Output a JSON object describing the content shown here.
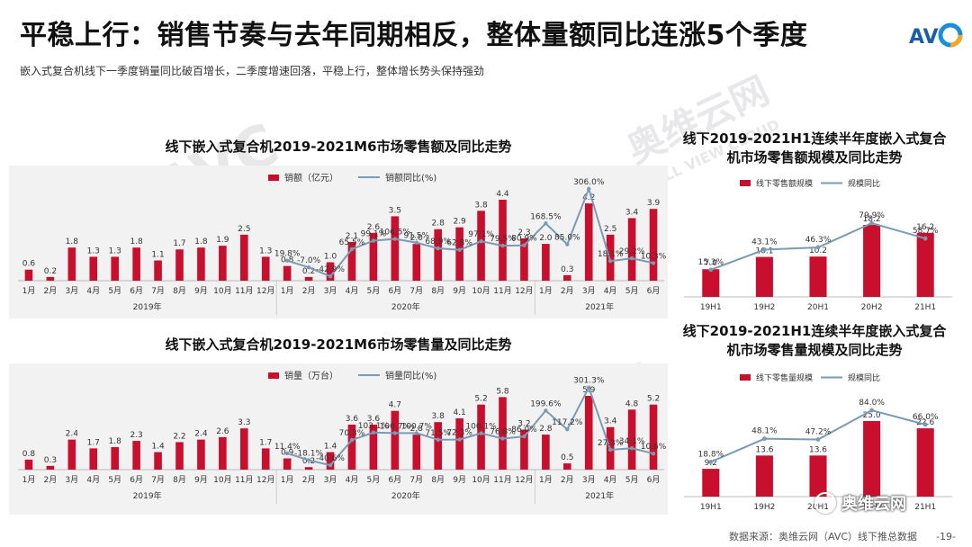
{
  "header": {
    "title": "平稳上行：销售节奏与去年同期相反，整体量额同比连涨5个季度",
    "subtitle": "嵌入式复合机线下一季度销量同比破百增长，二季度增速回落，平稳上行，整体增长势头保持强劲"
  },
  "watermark": {
    "cn": "奥维云网",
    "en": "AVC",
    "en_small": "ALL VIEW CLOUD"
  },
  "footer": {
    "source": "数据来源：奥维云网（AVC）线下推总数据",
    "page": "-19-"
  },
  "wechat": {
    "label": "奥维云网"
  },
  "colors": {
    "bar": "#c8102e",
    "line": "#7a9bb5",
    "panel": "#f2f2f2"
  },
  "chart_data": [
    {
      "type": "bar",
      "title": "线下嵌入式复合机2019-2021M6市场零售额及同比走势",
      "legend": [
        "销额（亿元）",
        "销额同比(%)"
      ],
      "categories": [
        "1月",
        "2月",
        "3月",
        "4月",
        "5月",
        "6月",
        "7月",
        "8月",
        "9月",
        "10月",
        "11月",
        "12月",
        "1月",
        "2月",
        "3月",
        "4月",
        "5月",
        "6月",
        "7月",
        "8月",
        "9月",
        "10月",
        "11月",
        "12月",
        "1月",
        "2月",
        "3月",
        "4月",
        "5月",
        "6月"
      ],
      "groups": [
        "2019年",
        "2020年",
        "2021年"
      ],
      "values": [
        0.6,
        0.2,
        1.8,
        1.3,
        1.3,
        1.8,
        1.1,
        1.7,
        1.8,
        1.9,
        2.5,
        1.3,
        0.8,
        0.2,
        1.0,
        2.1,
        2.6,
        3.5,
        2.0,
        2.8,
        2.9,
        3.8,
        4.4,
        2.3,
        2.0,
        0.3,
        4.2,
        2.5,
        3.4,
        3.9
      ],
      "value_labels": [
        "0.6",
        "0.2",
        "1.8",
        "1.3",
        "1.3",
        "1.8",
        "1.1",
        "1.7",
        "1.8",
        "1.9",
        "2.5",
        "1.3",
        "0.8",
        "0.2",
        "1.0",
        "2.1",
        "2.6",
        "3.5",
        "2.0",
        "2.8",
        "2.9",
        "3.8",
        "4.4",
        "2.3",
        "2.0",
        "0.3",
        "4.2",
        "2.5",
        "3.4",
        "3.9"
      ],
      "yoy": [
        19.8,
        -7.0,
        -42.9,
        65.5,
        99.1,
        106.5,
        91.5,
        68.9,
        62.8,
        97.1,
        79.5,
        80.9,
        168.5,
        85.0,
        306.0,
        18.1,
        29.2,
        10.3
      ],
      "yoy_labels": [
        "19.8%",
        "-7.0%",
        "-42.9%",
        "65.5%",
        "99.1%",
        "106.5%",
        "91.5%",
        "68.9%",
        "62.8%",
        "97.1%",
        "79.5%",
        "80.9%",
        "168.5%",
        "85.0%",
        "306.0%",
        "18.1%",
        "29.2%",
        "10.3%"
      ]
    },
    {
      "type": "bar",
      "title": "线下嵌入式复合机2019-2021M6市场零售量及同比走势",
      "legend": [
        "销量（万台）",
        "销量同比(%)"
      ],
      "categories": [
        "1月",
        "2月",
        "3月",
        "4月",
        "5月",
        "6月",
        "7月",
        "8月",
        "9月",
        "10月",
        "11月",
        "12月",
        "1月",
        "2月",
        "3月",
        "4月",
        "5月",
        "6月",
        "7月",
        "8月",
        "9月",
        "10月",
        "11月",
        "12月",
        "1月",
        "2月",
        "3月",
        "4月",
        "5月",
        "6月"
      ],
      "groups": [
        "2019年",
        "2020年",
        "2021年"
      ],
      "values": [
        0.8,
        0.3,
        2.4,
        1.7,
        1.8,
        2.3,
        1.4,
        2.2,
        2.4,
        2.6,
        3.3,
        1.7,
        0.9,
        0.2,
        1.4,
        3.6,
        3.6,
        4.7,
        2.8,
        3.8,
        4.1,
        5.2,
        5.8,
        3.2,
        2.8,
        0.5,
        5.9,
        3.4,
        4.8,
        5.2
      ],
      "value_labels": [
        "0.8",
        "0.3",
        "2.4",
        "1.7",
        "1.8",
        "2.3",
        "1.4",
        "2.2",
        "2.4",
        "2.6",
        "3.3",
        "1.7",
        "0.9",
        "0.2",
        "1.4",
        "3.6",
        "3.6",
        "4.7",
        "2.8",
        "3.8",
        "4.1",
        "5.2",
        "5.8",
        "3.2",
        "2.8",
        "0.5",
        "5.9",
        "3.4",
        "4.8",
        "5.2"
      ],
      "yoy": [
        11.4,
        -18.1,
        -40.6,
        70.3,
        103.1,
        100.7,
        100.7,
        71.5,
        72.3,
        100.1,
        76.8,
        86.0,
        199.6,
        117.2,
        301.3,
        27.3,
        34.1,
        10.6
      ],
      "yoy_labels": [
        "11.4%",
        "-18.1%",
        "-40.6%",
        "70.3%",
        "103.1%",
        "100.7%",
        "100.7%",
        "71.5%",
        "72.3%",
        "100.1%",
        "76.8%",
        "86.0%",
        "199.6%",
        "117.2%",
        "301.3%",
        "27.3%",
        "34.1%",
        "10.6%"
      ]
    },
    {
      "type": "bar",
      "title": "线下2019-2021H1连续半年度嵌入式复合机市场零售额规模及同比走势",
      "legend": [
        "线下零售额规模",
        "规模同比"
      ],
      "categories": [
        "19H1",
        "19H2",
        "20H1",
        "20H2",
        "21H1"
      ],
      "values": [
        7.0,
        10.1,
        10.2,
        18.2,
        16.2
      ],
      "value_labels": [
        "7.0",
        "10.1",
        "10.2",
        "18.2",
        "16.2"
      ],
      "yoy": [
        15.3,
        43.1,
        46.3,
        79.9,
        58.7
      ],
      "yoy_labels": [
        "15.3%",
        "43.1%",
        "46.3%",
        "79.9%",
        "58.7%"
      ]
    },
    {
      "type": "bar",
      "title": "线下2019-2021H1连续半年度嵌入式复合机市场零售量规模及同比走势",
      "legend": [
        "线下零售量规模",
        "规模同比"
      ],
      "categories": [
        "19H1",
        "19H2",
        "20H1",
        "20H2",
        "21H1"
      ],
      "values": [
        9.2,
        13.6,
        13.6,
        25.0,
        22.6
      ],
      "value_labels": [
        "9.2",
        "13.6",
        "13.6",
        "25.0",
        "22.6"
      ],
      "yoy": [
        18.8,
        48.1,
        47.2,
        84.0,
        66.0
      ],
      "yoy_labels": [
        "18.8%",
        "48.1%",
        "47.2%",
        "84.0%",
        "66.0%"
      ]
    }
  ]
}
